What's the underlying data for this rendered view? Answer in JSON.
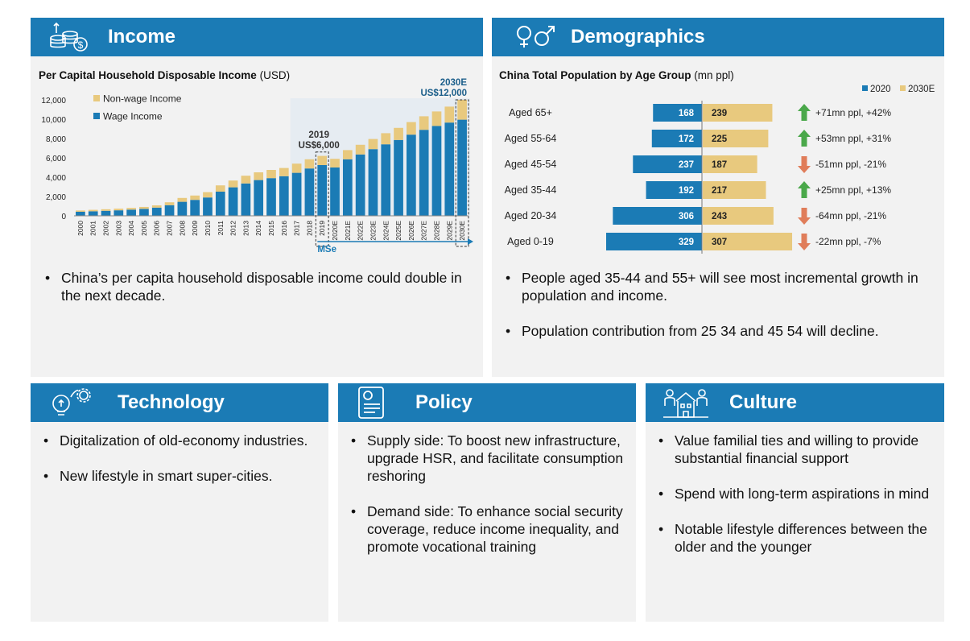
{
  "income": {
    "title": "Income",
    "chart_title": "Per Capital Household Disposable Income",
    "chart_unit": "(USD)",
    "bullets": [
      "China’s per capita household disposable income could double in the next decade."
    ]
  },
  "demographics": {
    "title": "Demographics",
    "chart_title": "China Total Population by Age Group",
    "chart_unit": "(mn ppl)",
    "bullets": [
      "People aged 35-44 and 55+ will see most incremental growth in population and income.",
      "Population contribution from 25 34 and 45 54 will decline."
    ]
  },
  "technology": {
    "title": "Technology",
    "bullets": [
      "Digitalization of old-economy industries.",
      "New lifestyle in smart super-cities."
    ]
  },
  "policy": {
    "title": "Policy",
    "bullets": [
      "Supply side: To boost new infrastructure, upgrade HSR, and facilitate consumption reshoring",
      "Demand side: To enhance social security coverage, reduce income inequality, and promote vocational training"
    ]
  },
  "culture": {
    "title": "Culture",
    "bullets": [
      "Value familial ties and willing to provide substantial financial support",
      "Spend with long-term aspirations in mind",
      "Notable lifestyle differences between the older and the younger"
    ]
  },
  "colors": {
    "header": "#1b7bb5",
    "wage": "#1b7bb5",
    "nonwage": "#e8c97e",
    "up": "#4aa84a",
    "down": "#e07d5a"
  },
  "chart_data": [
    {
      "type": "bar",
      "stacked": true,
      "title": "Per Capital Household Disposable Income (USD)",
      "categories": [
        "2000",
        "2001",
        "2002",
        "2003",
        "2004",
        "2005",
        "2006",
        "2007",
        "2008",
        "2009",
        "2010",
        "2011",
        "2012",
        "2013",
        "2014",
        "2015",
        "2016",
        "2017",
        "2018",
        "2019",
        "2020E",
        "2021E",
        "2022E",
        "2023E",
        "2024E",
        "2025E",
        "2026E",
        "2027E",
        "2028E",
        "2029E",
        "2030E"
      ],
      "series": [
        {
          "name": "Wage Income",
          "values": [
            420,
            470,
            520,
            570,
            640,
            720,
            850,
            1100,
            1450,
            1650,
            1900,
            2500,
            2950,
            3350,
            3700,
            3900,
            4100,
            4450,
            4900,
            5250,
            5000,
            5850,
            6350,
            6900,
            7400,
            7850,
            8400,
            8900,
            9300,
            9650,
            9950
          ]
        },
        {
          "name": "Non-wage Income",
          "values": [
            130,
            150,
            160,
            170,
            180,
            200,
            230,
            300,
            400,
            450,
            550,
            650,
            700,
            800,
            800,
            850,
            850,
            950,
            950,
            950,
            900,
            950,
            1000,
            1050,
            1150,
            1250,
            1300,
            1400,
            1500,
            1650,
            2050
          ]
        }
      ],
      "ylim": [
        0,
        12000
      ],
      "yticks": [
        0,
        2000,
        4000,
        6000,
        8000,
        10000,
        12000
      ],
      "ytick_labels": [
        "0",
        "2,000",
        "4,000",
        "6,000",
        "8,000",
        "10,000",
        "12,000"
      ],
      "legend_placement": "top-left",
      "annotations": [
        {
          "year": "2019",
          "value": "US$6,000"
        },
        {
          "year": "2030E",
          "value": "US$12,000"
        }
      ],
      "x_annotation": "MSe"
    },
    {
      "type": "bar",
      "orientation": "horizontal",
      "title": "China Total Population by Age Group (mn ppl)",
      "categories": [
        "Aged 65+",
        "Aged 55-64",
        "Aged 45-54",
        "Aged 35-44",
        "Aged 20-34",
        "Aged 0-19"
      ],
      "series": [
        {
          "name": "2020",
          "values": [
            168,
            172,
            237,
            192,
            306,
            329
          ]
        },
        {
          "name": "2030E",
          "values": [
            239,
            225,
            187,
            217,
            243,
            307
          ]
        }
      ],
      "changes": [
        {
          "direction": "up",
          "text": "+71mn ppl, +42%"
        },
        {
          "direction": "up",
          "text": "+53mn ppl, +31%"
        },
        {
          "direction": "down",
          "text": "-51mn ppl, -21%"
        },
        {
          "direction": "up",
          "text": "+25mn ppl, +13%"
        },
        {
          "direction": "down",
          "text": "-64mn ppl, -21%"
        },
        {
          "direction": "down",
          "text": "-22mn ppl, -7%"
        }
      ],
      "legend_placement": "top-right"
    }
  ]
}
